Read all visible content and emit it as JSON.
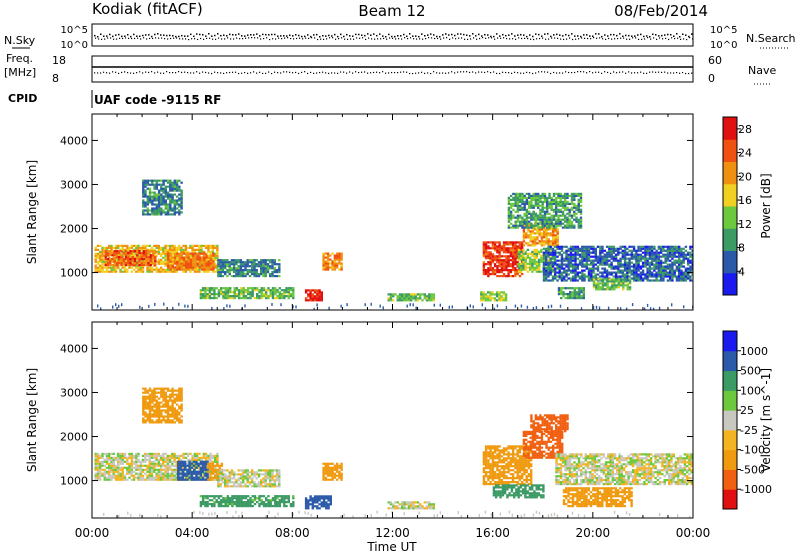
{
  "header": {
    "station": "Kodiak (fitACF)",
    "beam": "Beam 12",
    "date": "08/Feb/2014"
  },
  "summary_panels": {
    "nsky_label": "N.Sky",
    "nsearch_label": "N.Search",
    "noise_ticks": [
      "10^5",
      "10^0"
    ],
    "freq_label_1": "Freq.",
    "freq_label_2": "[MHz]",
    "freq_ticks": [
      "18",
      "8"
    ],
    "nave_label": "Nave",
    "nave_ticks": [
      "60",
      "0"
    ],
    "cpid_label": "CPID",
    "cpid_text": "UAF code -9115 RF"
  },
  "time_axis": {
    "label": "Time UT",
    "ticks": [
      "00:00",
      "04:00",
      "08:00",
      "12:00",
      "16:00",
      "20:00",
      "00:00"
    ]
  },
  "colors": {
    "power": [
      "#1a1aee",
      "#2a5aa8",
      "#3c9a64",
      "#6cc83c",
      "#f0d020",
      "#f09010",
      "#f05010",
      "#e01010"
    ],
    "velocity": [
      "#e01010",
      "#f06010",
      "#f09a10",
      "#f4b420",
      "#c8c8c0",
      "#6cc83c",
      "#3c9a64",
      "#2a5aa8",
      "#1a1aee"
    ]
  },
  "chart_data": [
    {
      "type": "heatmap",
      "panel": "power",
      "ylabel": "Slant Range [km]",
      "y_ticks": [
        1000,
        2000,
        3000,
        4000
      ],
      "ylim": [
        150,
        4600
      ],
      "xlim_hours": [
        0,
        24
      ],
      "colorbar_label": "Power [dB]",
      "colorbar_ticks": [
        4,
        8,
        12,
        16,
        20,
        24,
        28
      ],
      "colorbar_range": [
        0,
        30
      ],
      "regions": [
        {
          "t0": 0.1,
          "t1": 5.0,
          "r0": 1000,
          "r1": 1600,
          "value": 18
        },
        {
          "t0": 0.5,
          "t1": 2.5,
          "r0": 1150,
          "r1": 1500,
          "value": 24
        },
        {
          "t0": 3.0,
          "t1": 4.8,
          "r0": 1050,
          "r1": 1450,
          "value": 22
        },
        {
          "t0": 5.0,
          "t1": 7.5,
          "r0": 900,
          "r1": 1300,
          "value": 8
        },
        {
          "t0": 4.3,
          "t1": 8.0,
          "r0": 400,
          "r1": 650,
          "value": 12
        },
        {
          "t0": 8.5,
          "t1": 9.2,
          "r0": 350,
          "r1": 600,
          "value": 28
        },
        {
          "t0": 9.2,
          "t1": 10.0,
          "r0": 1050,
          "r1": 1450,
          "value": 22
        },
        {
          "t0": 2.0,
          "t1": 3.6,
          "r0": 2300,
          "r1": 3100,
          "value": 8
        },
        {
          "t0": 11.8,
          "t1": 13.6,
          "r0": 350,
          "r1": 500,
          "value": 12
        },
        {
          "t0": 15.6,
          "t1": 17.2,
          "r0": 900,
          "r1": 1700,
          "value": 26
        },
        {
          "t0": 17.0,
          "t1": 18.4,
          "r0": 1000,
          "r1": 1500,
          "value": 14
        },
        {
          "t0": 17.2,
          "t1": 18.6,
          "r0": 1600,
          "r1": 2100,
          "value": 20
        },
        {
          "t0": 18.0,
          "t1": 24.0,
          "r0": 800,
          "r1": 1600,
          "value": 6
        },
        {
          "t0": 18.6,
          "t1": 19.6,
          "r0": 400,
          "r1": 650,
          "value": 10
        },
        {
          "t0": 20.0,
          "t1": 21.5,
          "r0": 600,
          "r1": 850,
          "value": 12
        },
        {
          "t0": 16.6,
          "t1": 19.5,
          "r0": 2000,
          "r1": 2800,
          "value": 10
        },
        {
          "t0": 15.5,
          "t1": 16.5,
          "r0": 350,
          "r1": 550,
          "value": 14
        }
      ]
    },
    {
      "type": "heatmap",
      "panel": "velocity",
      "ylabel": "Slant Range [km]",
      "y_ticks": [
        1000,
        2000,
        3000,
        4000
      ],
      "ylim": [
        150,
        4600
      ],
      "xlim_hours": [
        0,
        24
      ],
      "colorbar_label": "Velocity [m s^-1]",
      "colorbar_ticks": [
        1000,
        500,
        100,
        25,
        -25,
        -100,
        -500,
        -1000
      ],
      "regions": [
        {
          "t0": 0.1,
          "t1": 5.0,
          "r0": 1000,
          "r1": 1600,
          "value": 0
        },
        {
          "t0": 3.4,
          "t1": 4.6,
          "r0": 1000,
          "r1": 1450,
          "value": 800
        },
        {
          "t0": 4.6,
          "t1": 5.2,
          "r0": 1000,
          "r1": 1400,
          "value": -300
        },
        {
          "t0": 5.0,
          "t1": 7.5,
          "r0": 850,
          "r1": 1250,
          "value": 0
        },
        {
          "t0": 4.3,
          "t1": 8.0,
          "r0": 400,
          "r1": 650,
          "value": 150
        },
        {
          "t0": 8.5,
          "t1": 9.5,
          "r0": 350,
          "r1": 650,
          "value": 700
        },
        {
          "t0": 9.2,
          "t1": 10.0,
          "r0": 1000,
          "r1": 1400,
          "value": -200
        },
        {
          "t0": 2.0,
          "t1": 3.6,
          "r0": 2300,
          "r1": 3100,
          "value": -200
        },
        {
          "t0": 11.8,
          "t1": 13.6,
          "r0": 350,
          "r1": 500,
          "value": 0
        },
        {
          "t0": 15.6,
          "t1": 17.5,
          "r0": 900,
          "r1": 1800,
          "value": -400
        },
        {
          "t0": 17.2,
          "t1": 18.8,
          "r0": 1500,
          "r1": 2100,
          "value": -600
        },
        {
          "t0": 17.5,
          "t1": 19.0,
          "r0": 2100,
          "r1": 2500,
          "value": -900
        },
        {
          "t0": 18.5,
          "t1": 24.0,
          "r0": 900,
          "r1": 1600,
          "value": 0
        },
        {
          "t0": 18.8,
          "t1": 21.5,
          "r0": 400,
          "r1": 850,
          "value": -200
        },
        {
          "t0": 16.0,
          "t1": 18.0,
          "r0": 600,
          "r1": 900,
          "value": 200
        }
      ]
    }
  ]
}
